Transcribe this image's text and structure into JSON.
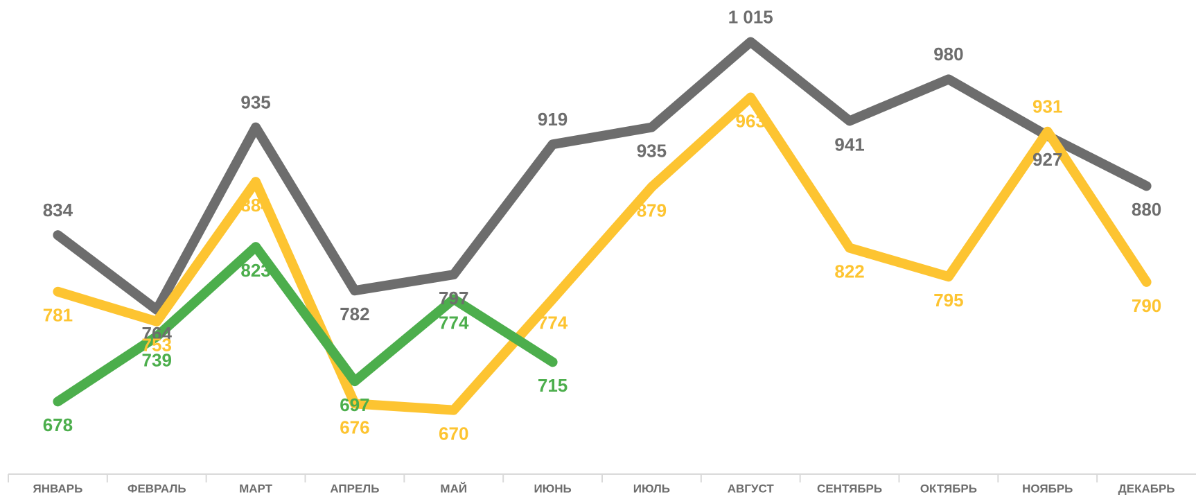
{
  "chart_data": {
    "type": "line",
    "categories": [
      "ЯНВАРЬ",
      "ФЕВРАЛЬ",
      "МАРТ",
      "АПРЕЛЬ",
      "МАЙ",
      "ИЮНЬ",
      "ИЮЛЬ",
      "АВГУСТ",
      "СЕНТЯБРЬ",
      "ОКТЯБРЬ",
      "НОЯБРЬ",
      "ДЕКАБРЬ"
    ],
    "series": [
      {
        "color": "#6d6d6d",
        "values": [
          834,
          764,
          935,
          782,
          797,
          919,
          935,
          1015,
          941,
          980,
          927,
          880
        ],
        "value_labels": [
          "834",
          "764",
          "935",
          "782",
          "797",
          "919",
          "935",
          "1 015",
          "941",
          "980",
          "927",
          "880"
        ]
      },
      {
        "color": "#fdc431",
        "values": [
          781,
          753,
          884,
          676,
          670,
          774,
          879,
          963,
          822,
          795,
          931,
          790
        ]
      },
      {
        "color": "#4cae4c",
        "values": [
          678,
          739,
          823,
          697,
          774,
          715,
          null,
          null,
          null,
          null,
          null,
          null
        ]
      }
    ],
    "ylim": [
      610,
      1050
    ]
  }
}
